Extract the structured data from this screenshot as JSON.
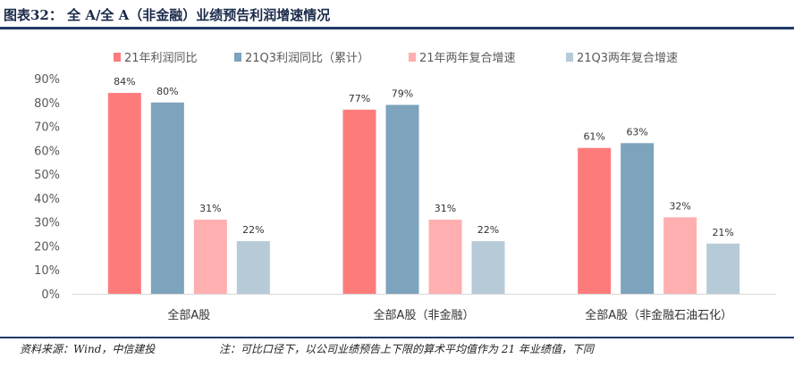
{
  "header": {
    "title": "图表32： 全 A/全 A（非金融）业绩预告利润增速情况"
  },
  "footer": {
    "source": "资料来源：Wind，中信建投",
    "note": "注：可比口径下，以公司业绩预告上下限的算术平均值作为 21 年业绩值，下同"
  },
  "colors": {
    "rule": "#1f3a66"
  },
  "chart_data": {
    "type": "bar",
    "categories": [
      "全部A股",
      "全部A股（非金融）",
      "全部A股（非金融石油石化）"
    ],
    "series": [
      {
        "name": "21年利润同比",
        "color": "#fe7b7b",
        "values": [
          84,
          77,
          61
        ],
        "labels": [
          "84%",
          "77%",
          "61%"
        ]
      },
      {
        "name": "21Q3利润同比（累计）",
        "color": "#7da3bd",
        "values": [
          80,
          79,
          63
        ],
        "labels": [
          "80%",
          "79%",
          "63%"
        ]
      },
      {
        "name": "21年两年复合增速",
        "color": "#ffafb0",
        "values": [
          31,
          31,
          32
        ],
        "labels": [
          "31%",
          "31%",
          "32%"
        ]
      },
      {
        "name": "21Q3两年复合增速",
        "color": "#b7cad7",
        "values": [
          22,
          22,
          21
        ],
        "labels": [
          "22%",
          "22%",
          "21%"
        ]
      }
    ],
    "ylim": [
      0,
      90
    ],
    "yticks": [
      "0%",
      "10%",
      "20%",
      "30%",
      "40%",
      "50%",
      "60%",
      "70%",
      "80%",
      "90%"
    ],
    "legend_position": "top",
    "grid": false
  }
}
